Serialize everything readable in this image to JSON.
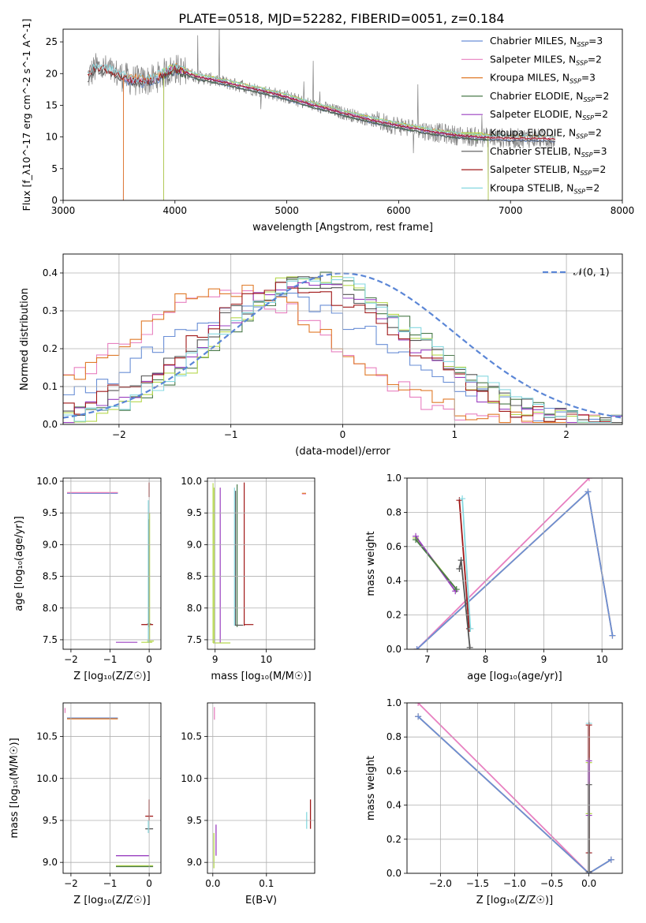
{
  "figure": {
    "title": "PLATE=0518, MJD=52282, FIBERID=0051, z=0.184"
  },
  "colors": {
    "chabrier_miles": "#6a8fd6",
    "salpeter_miles": "#e880c0",
    "kroupa_miles": "#e07b2a",
    "chabrier_elodie": "#4a7a4a",
    "salpeter_elodie": "#9a3fc0",
    "kroupa_elodie": "#b6d84f",
    "chabrier_stelib": "#555555",
    "salpeter_stelib": "#a01818",
    "kroupa_stelib": "#86d8e0",
    "data": "#808080",
    "grid": "#b0b0b0",
    "normal": "#5b86d6"
  },
  "chart_data": [
    {
      "id": "spectrum",
      "type": "line",
      "xlabel": "wavelength [Angstrom, rest frame]",
      "ylabel": "Flux [f_λ10^-17 erg cm^-2 s^-1 A^-1]",
      "xlim": [
        3000,
        8000
      ],
      "ylim": [
        0,
        27
      ],
      "xticks": [
        3000,
        4000,
        5000,
        6000,
        7000,
        8000
      ],
      "yticks": [
        0,
        5,
        10,
        15,
        20,
        25
      ],
      "grid": false,
      "legend_position": "top-right",
      "legend": [
        {
          "label": "Chabrier MILES, N",
          "sub": "SSP",
          "suffix": "=3",
          "color_key": "chabrier_miles"
        },
        {
          "label": "Salpeter MILES, N",
          "sub": "SSP",
          "suffix": "=2",
          "color_key": "salpeter_miles"
        },
        {
          "label": "Kroupa MILES, N",
          "sub": "SSP",
          "suffix": "=3",
          "color_key": "kroupa_miles"
        },
        {
          "label": "Chabrier ELODIE, N",
          "sub": "SSP",
          "suffix": "=2",
          "color_key": "chabrier_elodie"
        },
        {
          "label": "Salpeter ELODIE, N",
          "sub": "SSP",
          "suffix": "=2",
          "color_key": "salpeter_elodie"
        },
        {
          "label": "Kroupa ELODIE, N",
          "sub": "SSP",
          "suffix": "=2",
          "color_key": "kroupa_elodie"
        },
        {
          "label": "Chabrier STELIB, N",
          "sub": "SSP",
          "suffix": "=3",
          "color_key": "chabrier_stelib"
        },
        {
          "label": "Salpeter STELIB, N",
          "sub": "SSP",
          "suffix": "=2",
          "color_key": "salpeter_stelib"
        },
        {
          "label": "Kroupa STELIB, N",
          "sub": "SSP",
          "suffix": "=2",
          "color_key": "kroupa_stelib"
        }
      ],
      "continuum": {
        "x": [
          3220,
          3300,
          3400,
          3500,
          3600,
          3700,
          3800,
          3900,
          4000,
          4100,
          4200,
          4400,
          4600,
          4800,
          5000,
          5200,
          5500,
          5800,
          6000,
          6300,
          6500,
          6700,
          7000,
          7200,
          7400
        ],
        "y": [
          19.5,
          21.0,
          20.5,
          19.8,
          19.0,
          18.8,
          19.0,
          20.0,
          20.8,
          20.2,
          19.5,
          18.8,
          18.0,
          17.2,
          16.3,
          15.2,
          13.8,
          12.5,
          11.8,
          10.8,
          10.3,
          10.0,
          9.8,
          9.8,
          9.7
        ]
      }
    },
    {
      "id": "residual-hist",
      "type": "line",
      "xlabel": "(data-model)/error",
      "ylabel": "Normed distribution",
      "xlim": [
        -2.5,
        2.5
      ],
      "ylim": [
        0,
        0.45
      ],
      "xticks": [
        -2,
        -1,
        0,
        1,
        2
      ],
      "yticks": [
        0.0,
        0.1,
        0.2,
        0.3,
        0.4
      ],
      "grid": true,
      "legend_position": "top-right",
      "legend": [
        {
          "label": "𝒩(0, 1)",
          "color_key": "normal"
        }
      ],
      "bin_width": 0.1,
      "hist_peaks": [
        {
          "key": "chabrier_miles",
          "mu": -0.6,
          "sigma": 1.05,
          "peak": 0.33
        },
        {
          "key": "salpeter_miles",
          "mu": -1.0,
          "sigma": 0.95,
          "peak": 0.35
        },
        {
          "key": "kroupa_miles",
          "mu": -1.0,
          "sigma": 0.95,
          "peak": 0.36
        },
        {
          "key": "chabrier_elodie",
          "mu": -0.2,
          "sigma": 0.9,
          "peak": 0.38
        },
        {
          "key": "salpeter_elodie",
          "mu": -0.3,
          "sigma": 0.9,
          "peak": 0.37
        },
        {
          "key": "kroupa_elodie",
          "mu": -0.2,
          "sigma": 0.85,
          "peak": 0.4
        },
        {
          "key": "chabrier_stelib",
          "mu": -0.3,
          "sigma": 0.95,
          "peak": 0.37
        },
        {
          "key": "salpeter_stelib",
          "mu": -0.4,
          "sigma": 0.95,
          "peak": 0.36
        },
        {
          "key": "kroupa_stelib",
          "mu": -0.2,
          "sigma": 0.9,
          "peak": 0.38
        }
      ]
    },
    {
      "id": "z-age",
      "type": "scatter",
      "xlabel": "Z [log₁₀(Z/Z☉)]",
      "ylabel": "age  [log₁₀(age/yr)]",
      "xlim": [
        -2.2,
        0.3
      ],
      "ylim": [
        7.35,
        10.05
      ],
      "xticks": [
        -2,
        -1,
        0
      ],
      "yticks": [
        7.5,
        8.0,
        8.5,
        9.0,
        9.5,
        10.0
      ],
      "grid": true
    },
    {
      "id": "mass-age",
      "type": "scatter",
      "xlabel": "mass [log₁₀(M/M☉)]",
      "xlim": [
        8.85,
        10.95
      ],
      "ylim": [
        7.35,
        10.05
      ],
      "xticks": [
        9,
        10
      ],
      "yticks": [
        7.5,
        8.0,
        8.5,
        9.0,
        9.5,
        10.0
      ],
      "grid": true
    },
    {
      "id": "age-weight",
      "type": "line",
      "xlabel": "age  [log₁₀(age/yr)]",
      "ylabel": "mass weight",
      "xlim": [
        6.65,
        10.35
      ],
      "ylim": [
        0,
        1
      ],
      "xticks": [
        7,
        8,
        9,
        10
      ],
      "yticks": [
        0.0,
        0.2,
        0.4,
        0.6,
        0.8,
        1.0
      ],
      "grid": true,
      "series": [
        {
          "key": "kroupa_miles",
          "x": [
            6.82,
            9.76,
            10.18
          ],
          "y": [
            0.0,
            0.92,
            0.08
          ]
        },
        {
          "key": "salpeter_miles",
          "x": [
            6.82,
            9.78
          ],
          "y": [
            0.0,
            1.0
          ]
        },
        {
          "key": "chabrier_miles",
          "x": [
            6.82,
            9.76,
            10.18
          ],
          "y": [
            0.0,
            0.92,
            0.08
          ]
        },
        {
          "key": "kroupa_elodie",
          "x": [
            6.8,
            7.5
          ],
          "y": [
            0.65,
            0.35
          ]
        },
        {
          "key": "salpeter_elodie",
          "x": [
            6.8,
            7.48
          ],
          "y": [
            0.66,
            0.34
          ]
        },
        {
          "key": "chabrier_elodie",
          "x": [
            6.8,
            7.5
          ],
          "y": [
            0.64,
            0.35
          ]
        },
        {
          "key": "salpeter_stelib",
          "x": [
            7.55,
            7.72
          ],
          "y": [
            0.87,
            0.12
          ]
        },
        {
          "key": "kroupa_stelib",
          "x": [
            7.6,
            7.74
          ],
          "y": [
            0.88,
            0.12
          ]
        },
        {
          "key": "chabrier_stelib",
          "x": [
            7.55,
            7.58,
            7.73
          ],
          "y": [
            0.47,
            0.52,
            0.01
          ]
        }
      ]
    },
    {
      "id": "z-mass",
      "type": "scatter",
      "xlabel": "Z [log₁₀(Z/Z☉)]",
      "ylabel": "mass [log₁₀(M/M☉)]",
      "xlim": [
        -2.2,
        0.3
      ],
      "ylim": [
        8.87,
        10.9
      ],
      "xticks": [
        -2,
        -1,
        0
      ],
      "yticks": [
        9.0,
        9.5,
        10.0,
        10.5
      ],
      "grid": true
    },
    {
      "id": "ebv-mass",
      "type": "scatter",
      "xlabel": "E(B-V)",
      "xlim": [
        -0.01,
        0.19
      ],
      "ylim": [
        8.87,
        10.9
      ],
      "xticks": [
        0.0,
        0.1
      ],
      "yticks": [
        9.0,
        9.5,
        10.0,
        10.5
      ],
      "grid": true
    },
    {
      "id": "z-weight",
      "type": "line",
      "xlabel": "Z [log₁₀(Z/Z☉)]",
      "ylabel": "mass weight",
      "xlim": [
        -2.45,
        0.45
      ],
      "ylim": [
        0,
        1
      ],
      "xticks": [
        -2.0,
        -1.5,
        -1.0,
        -0.5,
        0.0
      ],
      "yticks": [
        0.0,
        0.2,
        0.4,
        0.6,
        0.8,
        1.0
      ],
      "grid": true,
      "series": [
        {
          "key": "salpeter_miles",
          "x": [
            -2.3,
            0.0
          ],
          "y": [
            1.0,
            0.0
          ]
        },
        {
          "key": "kroupa_miles",
          "x": [
            -2.3,
            0.0,
            0.3
          ],
          "y": [
            0.92,
            0.0,
            0.08
          ]
        },
        {
          "key": "chabrier_miles",
          "x": [
            -2.3,
            0.0,
            0.3
          ],
          "y": [
            0.92,
            0.0,
            0.08
          ]
        },
        {
          "key": "kroupa_stelib",
          "x": [
            0.0,
            0.0
          ],
          "y": [
            0.12,
            0.88
          ]
        },
        {
          "key": "salpeter_stelib",
          "x": [
            0.0,
            0.0
          ],
          "y": [
            0.12,
            0.87
          ]
        },
        {
          "key": "kroupa_elodie",
          "x": [
            0.0,
            0.0
          ],
          "y": [
            0.35,
            0.65
          ]
        },
        {
          "key": "salpeter_elodie",
          "x": [
            0.0,
            0.0
          ],
          "y": [
            0.34,
            0.66
          ]
        },
        {
          "key": "chabrier_stelib",
          "x": [
            0.0,
            0.0
          ],
          "y": [
            0.01,
            0.52
          ]
        }
      ]
    }
  ]
}
